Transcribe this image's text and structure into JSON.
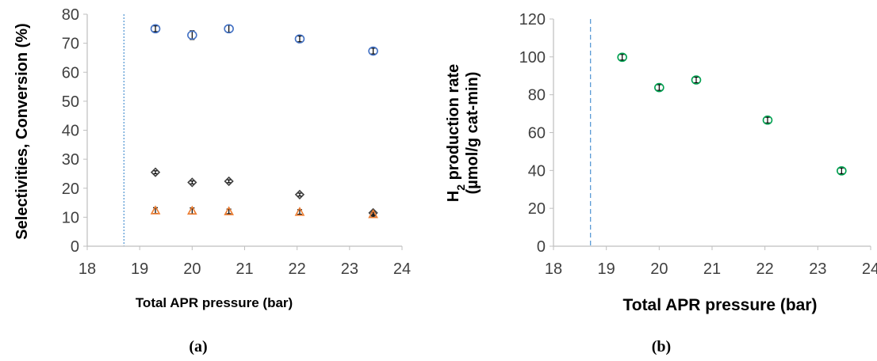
{
  "colors": {
    "blue": "#4472c4",
    "dark": "#404040",
    "orange": "#ed7d31",
    "green": "#00a050",
    "axis": "#bfbfbf",
    "refline": "#5b9bd5"
  },
  "chart_data": [
    {
      "type": "scatter",
      "panel_label": "(a)",
      "xlabel": "Total APR pressure (bar)",
      "ylabel": "Selectivities, Conversion (%)",
      "xlim": [
        18,
        24
      ],
      "ylim": [
        0,
        80
      ],
      "xticks": [
        18,
        19,
        20,
        21,
        22,
        23,
        24
      ],
      "yticks": [
        0,
        10,
        20,
        30,
        40,
        50,
        60,
        70,
        80
      ],
      "grid": false,
      "reference_line_x": 18.7,
      "series": [
        {
          "marker": "circle",
          "color": "#4472c4",
          "x": [
            19.3,
            20.0,
            20.7,
            22.05,
            23.45
          ],
          "y": [
            75.0,
            72.8,
            75.0,
            71.5,
            67.3
          ],
          "err": [
            1.0,
            1.5,
            1.2,
            1.0,
            1.0
          ]
        },
        {
          "marker": "diamond",
          "color": "#404040",
          "x": [
            19.3,
            20.0,
            20.7,
            22.05,
            23.45
          ],
          "y": [
            25.5,
            22.0,
            22.4,
            17.8,
            11.5
          ],
          "err": [
            0.5,
            0.5,
            0.5,
            0.5,
            0.5
          ]
        },
        {
          "marker": "triangle",
          "color": "#ed7d31",
          "x": [
            19.3,
            20.0,
            20.7,
            22.05,
            23.45
          ],
          "y": [
            12.3,
            12.2,
            12.0,
            11.8,
            11.0
          ],
          "err": [
            1.0,
            1.0,
            0.8,
            0.8,
            0.6
          ]
        }
      ]
    },
    {
      "type": "scatter",
      "panel_label": "(b)",
      "xlabel": "Total APR pressure (bar)",
      "ylabel_main": "H",
      "ylabel_sub": "2",
      "ylabel_rest": " production rate",
      "ylabel_line2": "(µmol/g cat-min)",
      "xlim": [
        18,
        24
      ],
      "ylim": [
        0,
        120
      ],
      "xticks": [
        18,
        19,
        20,
        21,
        22,
        23,
        24
      ],
      "yticks": [
        0,
        20,
        40,
        60,
        80,
        100,
        120
      ],
      "grid": false,
      "reference_line_x": 18.7,
      "series": [
        {
          "marker": "circle",
          "color": "#00a050",
          "x": [
            19.3,
            20.0,
            20.7,
            22.05,
            23.45
          ],
          "y": [
            99.8,
            83.8,
            87.8,
            66.6,
            39.8
          ],
          "err": [
            1.5,
            1.5,
            1.5,
            1.5,
            1.5
          ]
        }
      ]
    }
  ]
}
